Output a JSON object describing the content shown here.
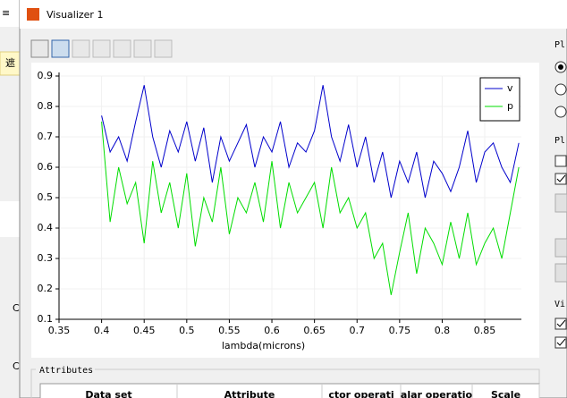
{
  "window_title": "Visualizer 1",
  "left_texts": [
    "≡",
    "遮",
    "C",
    "C"
  ],
  "side_labels": [
    "Pl",
    "Pl",
    "Vi"
  ],
  "attributes_title": "Attributes",
  "table_headers": [
    "Data set",
    "Attribute",
    "ctor operati",
    "alar operatio",
    "Scale"
  ],
  "chart_data": {
    "type": "line",
    "xlabel": "lambda(microns)",
    "x": [
      0.4,
      0.41,
      0.42,
      0.43,
      0.44,
      0.45,
      0.46,
      0.47,
      0.48,
      0.49,
      0.5,
      0.51,
      0.52,
      0.53,
      0.54,
      0.55,
      0.56,
      0.57,
      0.58,
      0.59,
      0.6,
      0.61,
      0.62,
      0.63,
      0.64,
      0.65,
      0.66,
      0.67,
      0.68,
      0.69,
      0.7,
      0.71,
      0.72,
      0.73,
      0.74,
      0.75,
      0.76,
      0.77,
      0.78,
      0.79,
      0.8,
      0.81,
      0.82,
      0.83,
      0.84,
      0.85,
      0.86,
      0.87,
      0.88,
      0.89
    ],
    "series": [
      {
        "name": "v",
        "color": "#0000cc",
        "values": [
          0.77,
          0.65,
          0.7,
          0.62,
          0.75,
          0.87,
          0.7,
          0.6,
          0.72,
          0.65,
          0.75,
          0.62,
          0.73,
          0.55,
          0.7,
          0.62,
          0.68,
          0.74,
          0.6,
          0.7,
          0.65,
          0.75,
          0.6,
          0.68,
          0.65,
          0.72,
          0.87,
          0.7,
          0.62,
          0.74,
          0.6,
          0.7,
          0.55,
          0.65,
          0.5,
          0.62,
          0.55,
          0.65,
          0.5,
          0.62,
          0.58,
          0.52,
          0.6,
          0.72,
          0.55,
          0.65,
          0.68,
          0.6,
          0.55,
          0.68
        ]
      },
      {
        "name": "p",
        "color": "#00dd00",
        "values": [
          0.75,
          0.42,
          0.6,
          0.48,
          0.55,
          0.35,
          0.62,
          0.45,
          0.55,
          0.4,
          0.58,
          0.34,
          0.5,
          0.42,
          0.6,
          0.38,
          0.5,
          0.45,
          0.55,
          0.42,
          0.62,
          0.4,
          0.55,
          0.45,
          0.5,
          0.55,
          0.4,
          0.6,
          0.45,
          0.5,
          0.4,
          0.45,
          0.3,
          0.35,
          0.18,
          0.32,
          0.45,
          0.25,
          0.4,
          0.35,
          0.28,
          0.42,
          0.3,
          0.45,
          0.28,
          0.35,
          0.4,
          0.3,
          0.45,
          0.6
        ]
      }
    ],
    "xlim": [
      0.35,
      0.893
    ],
    "xticks": [
      0.35,
      0.4,
      0.45,
      0.5,
      0.55,
      0.6,
      0.65,
      0.7,
      0.75,
      0.8,
      0.85
    ],
    "ylim": [
      0.1,
      0.9
    ],
    "yticks": [
      0.1,
      0.2,
      0.3,
      0.4,
      0.5,
      0.6,
      0.7,
      0.8,
      0.9
    ],
    "grid": true,
    "legend": "upper right"
  }
}
